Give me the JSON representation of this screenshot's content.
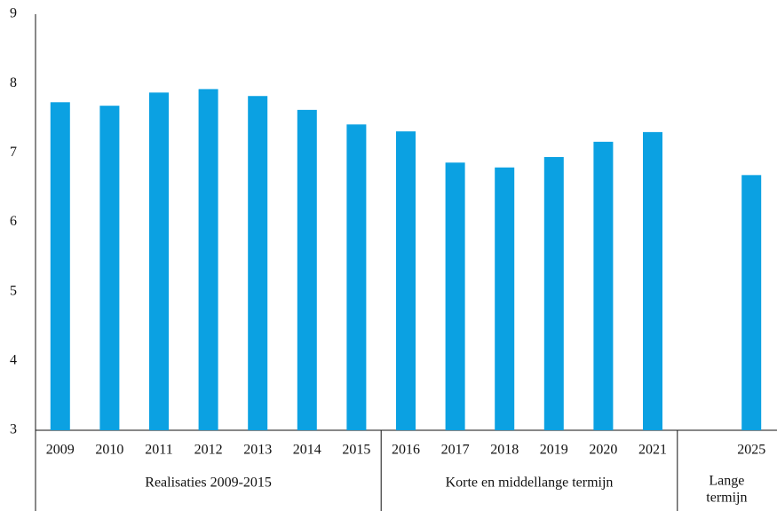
{
  "chart_data": {
    "type": "bar",
    "color": "#0ba1e2",
    "categories": [
      "2009",
      "2010",
      "2011",
      "2012",
      "2013",
      "2014",
      "2015",
      "2016",
      "2017",
      "2018",
      "2019",
      "2020",
      "2021",
      null,
      "2025"
    ],
    "values": [
      7.73,
      7.68,
      7.87,
      7.92,
      7.82,
      7.62,
      7.41,
      7.31,
      6.86,
      6.79,
      6.94,
      7.16,
      7.3,
      null,
      6.68
    ],
    "groups": [
      {
        "label": "Realisaties 2009-2015"
      },
      {
        "label": "Korte en middellange termijn"
      },
      {
        "lines": [
          "Lange",
          "termijn"
        ]
      }
    ],
    "ylim": [
      3,
      9
    ],
    "yticks": [
      3,
      4,
      5,
      6,
      7,
      8,
      9
    ],
    "grid": false
  }
}
